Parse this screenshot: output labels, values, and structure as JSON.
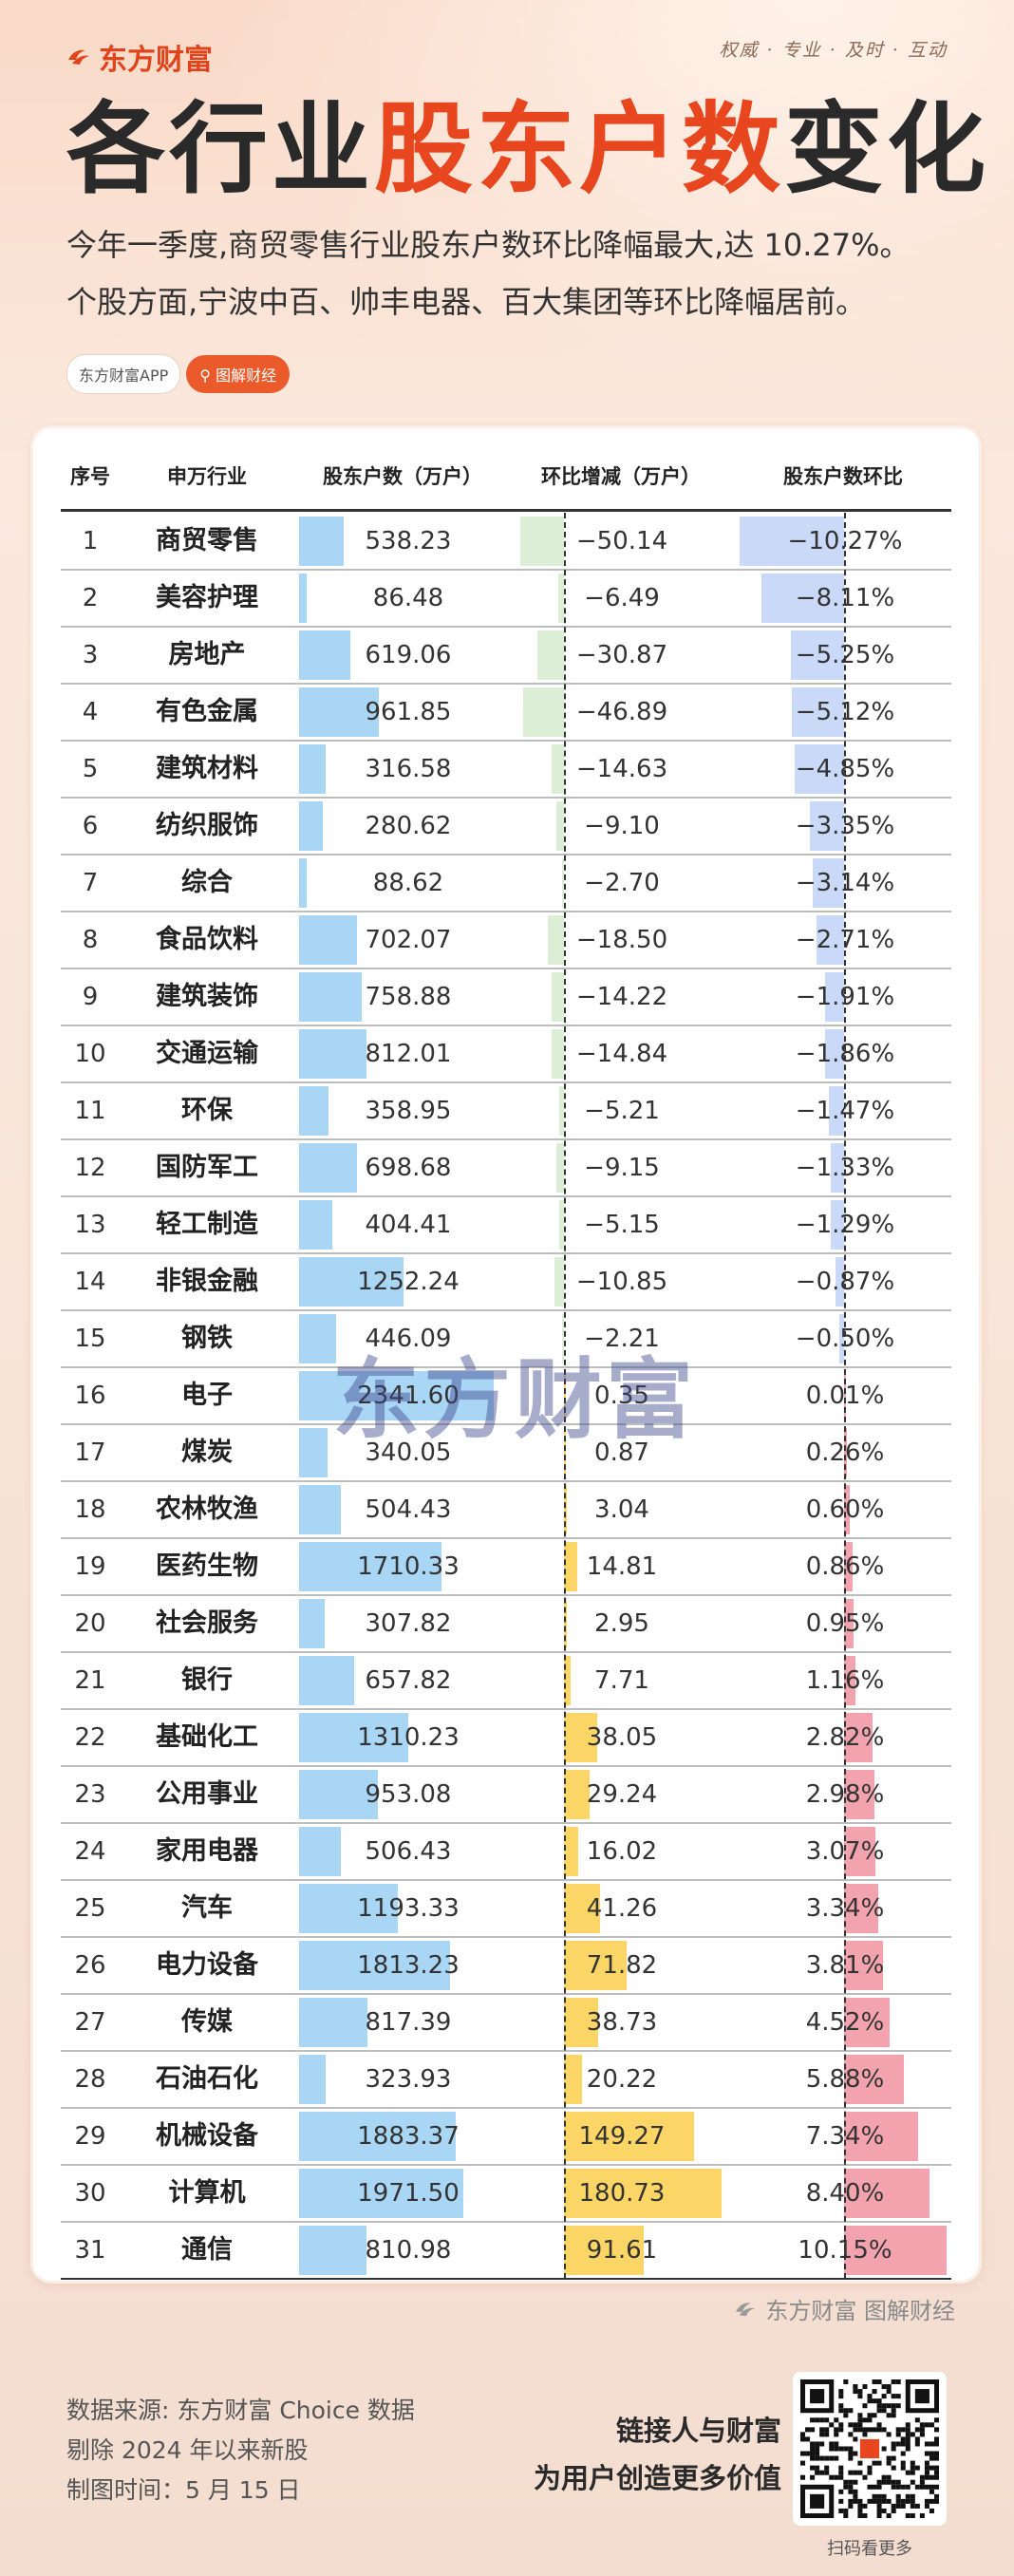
{
  "header": {
    "brand": "东方财富",
    "slogan": "权威 · 专业 · 及时 · 互动",
    "title_part1": "各行业",
    "title_part2": "股东户数",
    "title_part3": "变化",
    "subtitle_line1": "今年一季度,商贸零售行业股东户数环比降幅最大,达 10.27%。",
    "subtitle_line2": "个股方面,宁波中百、帅丰电器、百大集团等环比降幅居前。",
    "tag_app": "东方财富APP",
    "tag_search": "图解财经"
  },
  "colors": {
    "accent": "#e8461e",
    "holders_bar": "#a9d6f5",
    "change_neg_bar": "#dcefd6",
    "change_pos_bar": "#fbd565",
    "pct_neg_bar": "#c9d9f7",
    "pct_pos_bar": "#f3a3ad"
  },
  "chart_data": {
    "type": "table",
    "columns": [
      "序号",
      "申万行业",
      "股东户数（万户）",
      "环比增减（万户）",
      "股东户数环比"
    ],
    "rows": [
      {
        "rank": "1",
        "industry": "商贸零售",
        "holders": 538.23,
        "holders_text": "538.23",
        "change": -50.14,
        "change_text": "−50.14",
        "pct": -10.27,
        "pct_text": "−10.27%"
      },
      {
        "rank": "2",
        "industry": "美容护理",
        "holders": 86.48,
        "holders_text": "86.48",
        "change": -6.49,
        "change_text": "−6.49",
        "pct": -8.11,
        "pct_text": "−8.11%"
      },
      {
        "rank": "3",
        "industry": "房地产",
        "holders": 619.06,
        "holders_text": "619.06",
        "change": -30.87,
        "change_text": "−30.87",
        "pct": -5.25,
        "pct_text": "−5.25%"
      },
      {
        "rank": "4",
        "industry": "有色金属",
        "holders": 961.85,
        "holders_text": "961.85",
        "change": -46.89,
        "change_text": "−46.89",
        "pct": -5.12,
        "pct_text": "−5.12%"
      },
      {
        "rank": "5",
        "industry": "建筑材料",
        "holders": 316.58,
        "holders_text": "316.58",
        "change": -14.63,
        "change_text": "−14.63",
        "pct": -4.85,
        "pct_text": "−4.85%"
      },
      {
        "rank": "6",
        "industry": "纺织服饰",
        "holders": 280.62,
        "holders_text": "280.62",
        "change": -9.1,
        "change_text": "−9.10",
        "pct": -3.35,
        "pct_text": "−3.35%"
      },
      {
        "rank": "7",
        "industry": "综合",
        "holders": 88.62,
        "holders_text": "88.62",
        "change": -2.7,
        "change_text": "−2.70",
        "pct": -3.14,
        "pct_text": "−3.14%"
      },
      {
        "rank": "8",
        "industry": "食品饮料",
        "holders": 702.07,
        "holders_text": "702.07",
        "change": -18.5,
        "change_text": "−18.50",
        "pct": -2.71,
        "pct_text": "−2.71%"
      },
      {
        "rank": "9",
        "industry": "建筑装饰",
        "holders": 758.88,
        "holders_text": "758.88",
        "change": -14.22,
        "change_text": "−14.22",
        "pct": -1.91,
        "pct_text": "−1.91%"
      },
      {
        "rank": "10",
        "industry": "交通运输",
        "holders": 812.01,
        "holders_text": "812.01",
        "change": -14.84,
        "change_text": "−14.84",
        "pct": -1.86,
        "pct_text": "−1.86%"
      },
      {
        "rank": "11",
        "industry": "环保",
        "holders": 358.95,
        "holders_text": "358.95",
        "change": -5.21,
        "change_text": "−5.21",
        "pct": -1.47,
        "pct_text": "−1.47%"
      },
      {
        "rank": "12",
        "industry": "国防军工",
        "holders": 698.68,
        "holders_text": "698.68",
        "change": -9.15,
        "change_text": "−9.15",
        "pct": -1.33,
        "pct_text": "−1.33%"
      },
      {
        "rank": "13",
        "industry": "轻工制造",
        "holders": 404.41,
        "holders_text": "404.41",
        "change": -5.15,
        "change_text": "−5.15",
        "pct": -1.29,
        "pct_text": "−1.29%"
      },
      {
        "rank": "14",
        "industry": "非银金融",
        "holders": 1252.24,
        "holders_text": "1252.24",
        "change": -10.85,
        "change_text": "−10.85",
        "pct": -0.87,
        "pct_text": "−0.87%"
      },
      {
        "rank": "15",
        "industry": "钢铁",
        "holders": 446.09,
        "holders_text": "446.09",
        "change": -2.21,
        "change_text": "−2.21",
        "pct": -0.5,
        "pct_text": "−0.50%"
      },
      {
        "rank": "16",
        "industry": "电子",
        "holders": 2341.6,
        "holders_text": "2341.60",
        "change": 0.35,
        "change_text": "0.35",
        "pct": 0.01,
        "pct_text": "0.01%"
      },
      {
        "rank": "17",
        "industry": "煤炭",
        "holders": 340.05,
        "holders_text": "340.05",
        "change": 0.87,
        "change_text": "0.87",
        "pct": 0.26,
        "pct_text": "0.26%"
      },
      {
        "rank": "18",
        "industry": "农林牧渔",
        "holders": 504.43,
        "holders_text": "504.43",
        "change": 3.04,
        "change_text": "3.04",
        "pct": 0.6,
        "pct_text": "0.60%"
      },
      {
        "rank": "19",
        "industry": "医药生物",
        "holders": 1710.33,
        "holders_text": "1710.33",
        "change": 14.81,
        "change_text": "14.81",
        "pct": 0.86,
        "pct_text": "0.86%"
      },
      {
        "rank": "20",
        "industry": "社会服务",
        "holders": 307.82,
        "holders_text": "307.82",
        "change": 2.95,
        "change_text": "2.95",
        "pct": 0.95,
        "pct_text": "0.95%"
      },
      {
        "rank": "21",
        "industry": "银行",
        "holders": 657.82,
        "holders_text": "657.82",
        "change": 7.71,
        "change_text": "7.71",
        "pct": 1.16,
        "pct_text": "1.16%"
      },
      {
        "rank": "22",
        "industry": "基础化工",
        "holders": 1310.23,
        "holders_text": "1310.23",
        "change": 38.05,
        "change_text": "38.05",
        "pct": 2.82,
        "pct_text": "2.82%"
      },
      {
        "rank": "23",
        "industry": "公用事业",
        "holders": 953.08,
        "holders_text": "953.08",
        "change": 29.24,
        "change_text": "29.24",
        "pct": 2.98,
        "pct_text": "2.98%"
      },
      {
        "rank": "24",
        "industry": "家用电器",
        "holders": 506.43,
        "holders_text": "506.43",
        "change": 16.02,
        "change_text": "16.02",
        "pct": 3.07,
        "pct_text": "3.07%"
      },
      {
        "rank": "25",
        "industry": "汽车",
        "holders": 1193.33,
        "holders_text": "1193.33",
        "change": 41.26,
        "change_text": "41.26",
        "pct": 3.34,
        "pct_text": "3.34%"
      },
      {
        "rank": "26",
        "industry": "电力设备",
        "holders": 1813.23,
        "holders_text": "1813.23",
        "change": 71.82,
        "change_text": "71.82",
        "pct": 3.81,
        "pct_text": "3.81%"
      },
      {
        "rank": "27",
        "industry": "传媒",
        "holders": 817.39,
        "holders_text": "817.39",
        "change": 38.73,
        "change_text": "38.73",
        "pct": 4.52,
        "pct_text": "4.52%"
      },
      {
        "rank": "28",
        "industry": "石油石化",
        "holders": 323.93,
        "holders_text": "323.93",
        "change": 20.22,
        "change_text": "20.22",
        "pct": 5.88,
        "pct_text": "5.88%"
      },
      {
        "rank": "29",
        "industry": "机械设备",
        "holders": 1883.37,
        "holders_text": "1883.37",
        "change": 149.27,
        "change_text": "149.27",
        "pct": 7.34,
        "pct_text": "7.34%"
      },
      {
        "rank": "30",
        "industry": "计算机",
        "holders": 1971.5,
        "holders_text": "1971.50",
        "change": 180.73,
        "change_text": "180.73",
        "pct": 8.4,
        "pct_text": "8.40%"
      },
      {
        "rank": "31",
        "industry": "通信",
        "holders": 810.98,
        "holders_text": "810.98",
        "change": 91.61,
        "change_text": "91.61",
        "pct": 10.15,
        "pct_text": "10.15%"
      }
    ]
  },
  "watermark": "东方财富",
  "footer": {
    "mark": "东方财富 图解财经",
    "source1": "数据来源: 东方财富 Choice 数据",
    "source2": "剔除 2024 年以来新股",
    "source3": "制图时间：5 月 15 日",
    "motto1": "链接人与财富",
    "motto2": "为用户创造更多价值",
    "qr_caption": "扫码看更多"
  }
}
